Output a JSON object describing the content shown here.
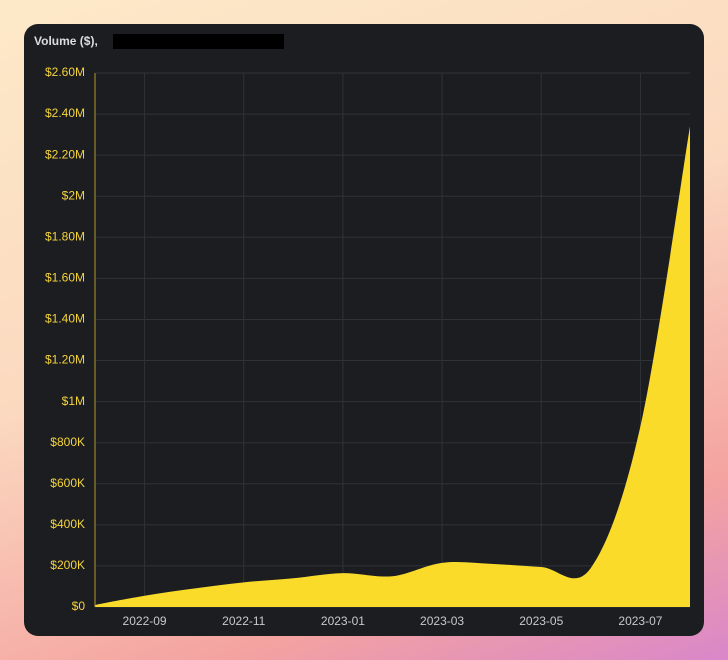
{
  "chart_data": {
    "type": "area",
    "title": "Volume ($),",
    "x": [
      "2022-08",
      "2022-09",
      "2022-10",
      "2022-11",
      "2022-12",
      "2023-01",
      "2023-02",
      "2023-03",
      "2023-04",
      "2023-05",
      "2023-06",
      "2023-07",
      "2023-08"
    ],
    "values": [
      10000,
      55000,
      90000,
      120000,
      140000,
      165000,
      150000,
      215000,
      210000,
      195000,
      190000,
      880000,
      2340000
    ],
    "color": "#fbdb2a",
    "xlim": [
      "2022-08",
      "2023-08"
    ],
    "xticks": [
      "2022-09",
      "2022-11",
      "2023-01",
      "2023-03",
      "2023-05",
      "2023-07"
    ],
    "ylim": [
      0,
      2600000
    ],
    "yticks": [
      {
        "value": 0,
        "label": "$0"
      },
      {
        "value": 200000,
        "label": "$200K"
      },
      {
        "value": 400000,
        "label": "$400K"
      },
      {
        "value": 600000,
        "label": "$600K"
      },
      {
        "value": 800000,
        "label": "$800K"
      },
      {
        "value": 1000000,
        "label": "$1M"
      },
      {
        "value": 1200000,
        "label": "$1.20M"
      },
      {
        "value": 1400000,
        "label": "$1.40M"
      },
      {
        "value": 1600000,
        "label": "$1.60M"
      },
      {
        "value": 1800000,
        "label": "$1.80M"
      },
      {
        "value": 2000000,
        "label": "$2M"
      },
      {
        "value": 2200000,
        "label": "$2.20M"
      },
      {
        "value": 2400000,
        "label": "$2.40M"
      },
      {
        "value": 2600000,
        "label": "$2.60M"
      }
    ],
    "grid": true
  }
}
